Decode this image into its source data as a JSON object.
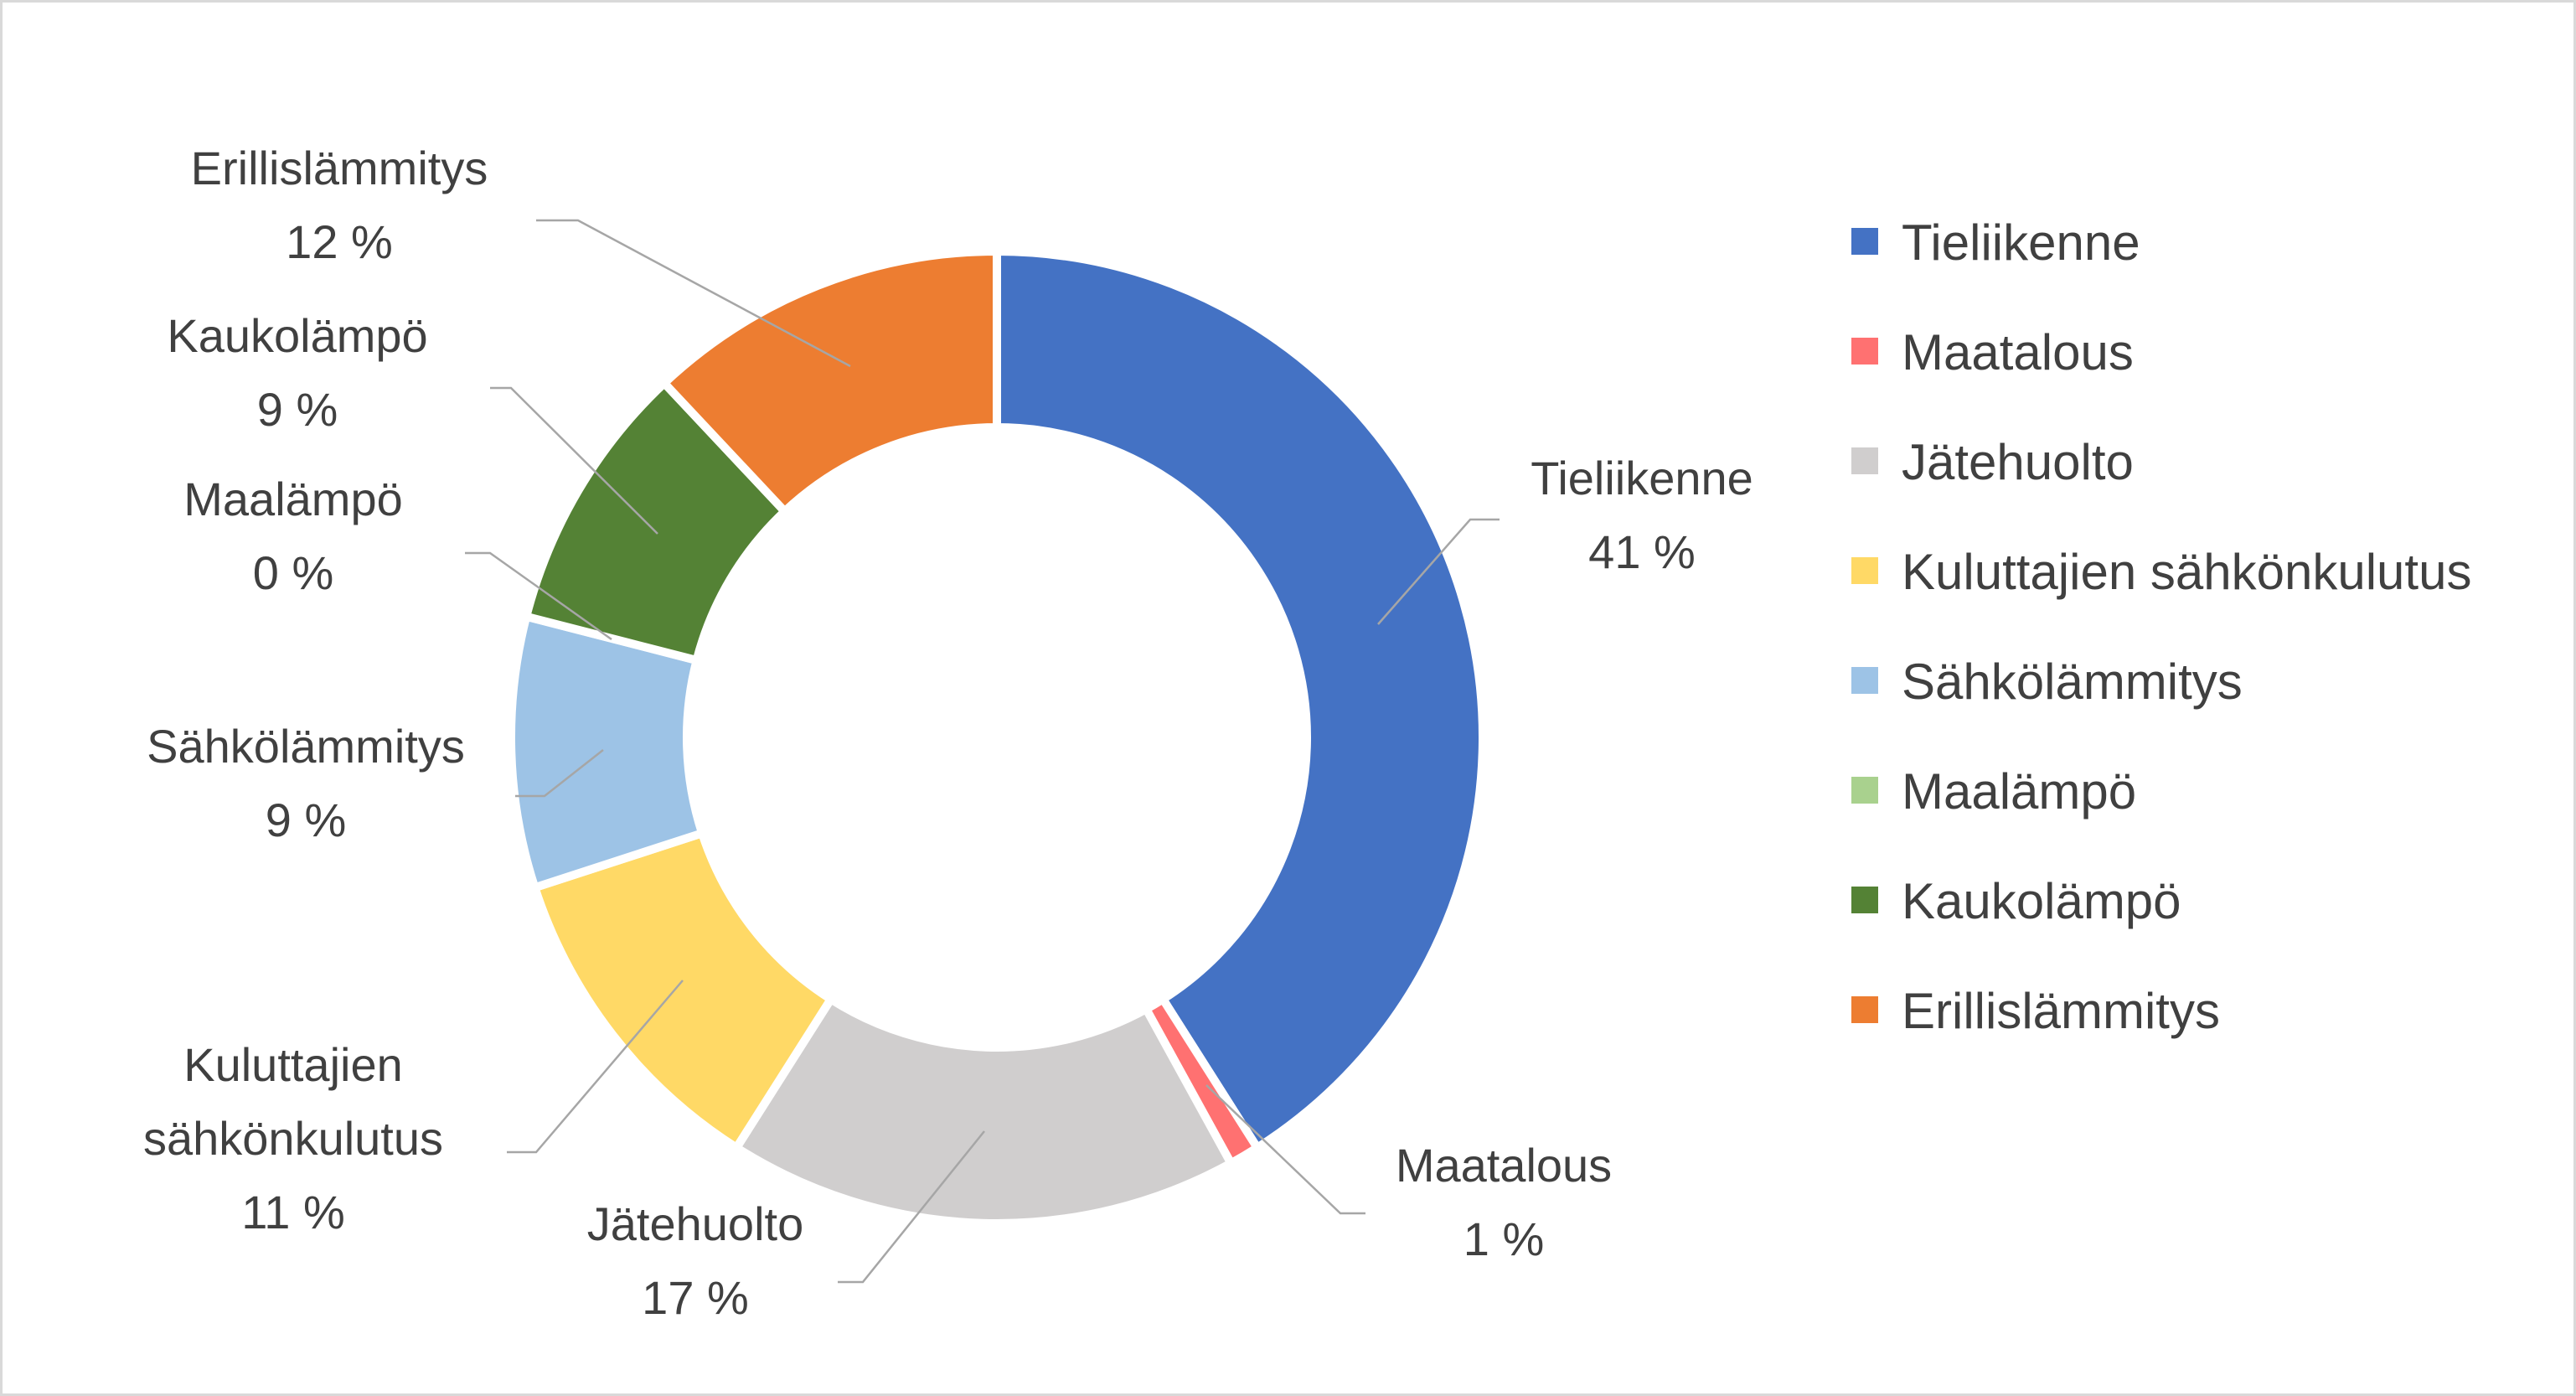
{
  "chart_data": {
    "type": "pie",
    "subtype": "doughnut",
    "title": "",
    "legend_position": "right",
    "series": [
      {
        "values": [
          41,
          1,
          17,
          11,
          9,
          0,
          9,
          12
        ],
        "categories": [
          "Tieliikenne",
          "Maatalous",
          "Jätehuolto",
          "Kuluttajien sähkönkulutus",
          "Sähkölämmitys",
          "Maalämpö",
          "Kaukolämpö",
          "Erillislämmitys"
        ]
      }
    ],
    "slices": [
      {
        "name": "Tieliikenne",
        "value": 41,
        "label_lines": [
          "Tieliikenne"
        ],
        "percent_label": "41 %",
        "color": "#4472c4"
      },
      {
        "name": "Maatalous",
        "value": 1,
        "label_lines": [
          "Maatalous"
        ],
        "percent_label": "1 %",
        "color": "#ff7171"
      },
      {
        "name": "Jätehuolto",
        "value": 17,
        "label_lines": [
          "Jätehuolto"
        ],
        "percent_label": "17 %",
        "color": "#d0cece"
      },
      {
        "name": "Kuluttajien sähkönkulutus",
        "value": 11,
        "label_lines": [
          "Kuluttajien",
          "sähkönkulutus"
        ],
        "percent_label": "11 %",
        "color": "#ffd966"
      },
      {
        "name": "Sähkölämmitys",
        "value": 9,
        "label_lines": [
          "Sähkölämmitys"
        ],
        "percent_label": "9 %",
        "color": "#9dc3e6"
      },
      {
        "name": "Maalämpö",
        "value": 0,
        "label_lines": [
          "Maalämpö"
        ],
        "percent_label": "0 %",
        "color": "#a9d18e"
      },
      {
        "name": "Kaukolämpö",
        "value": 9,
        "label_lines": [
          "Kaukolämpö"
        ],
        "percent_label": "9 %",
        "color": "#548235"
      },
      {
        "name": "Erillislämmitys",
        "value": 12,
        "label_lines": [
          "Erillislämmitys"
        ],
        "percent_label": "12 %",
        "color": "#ed7d31"
      }
    ]
  }
}
